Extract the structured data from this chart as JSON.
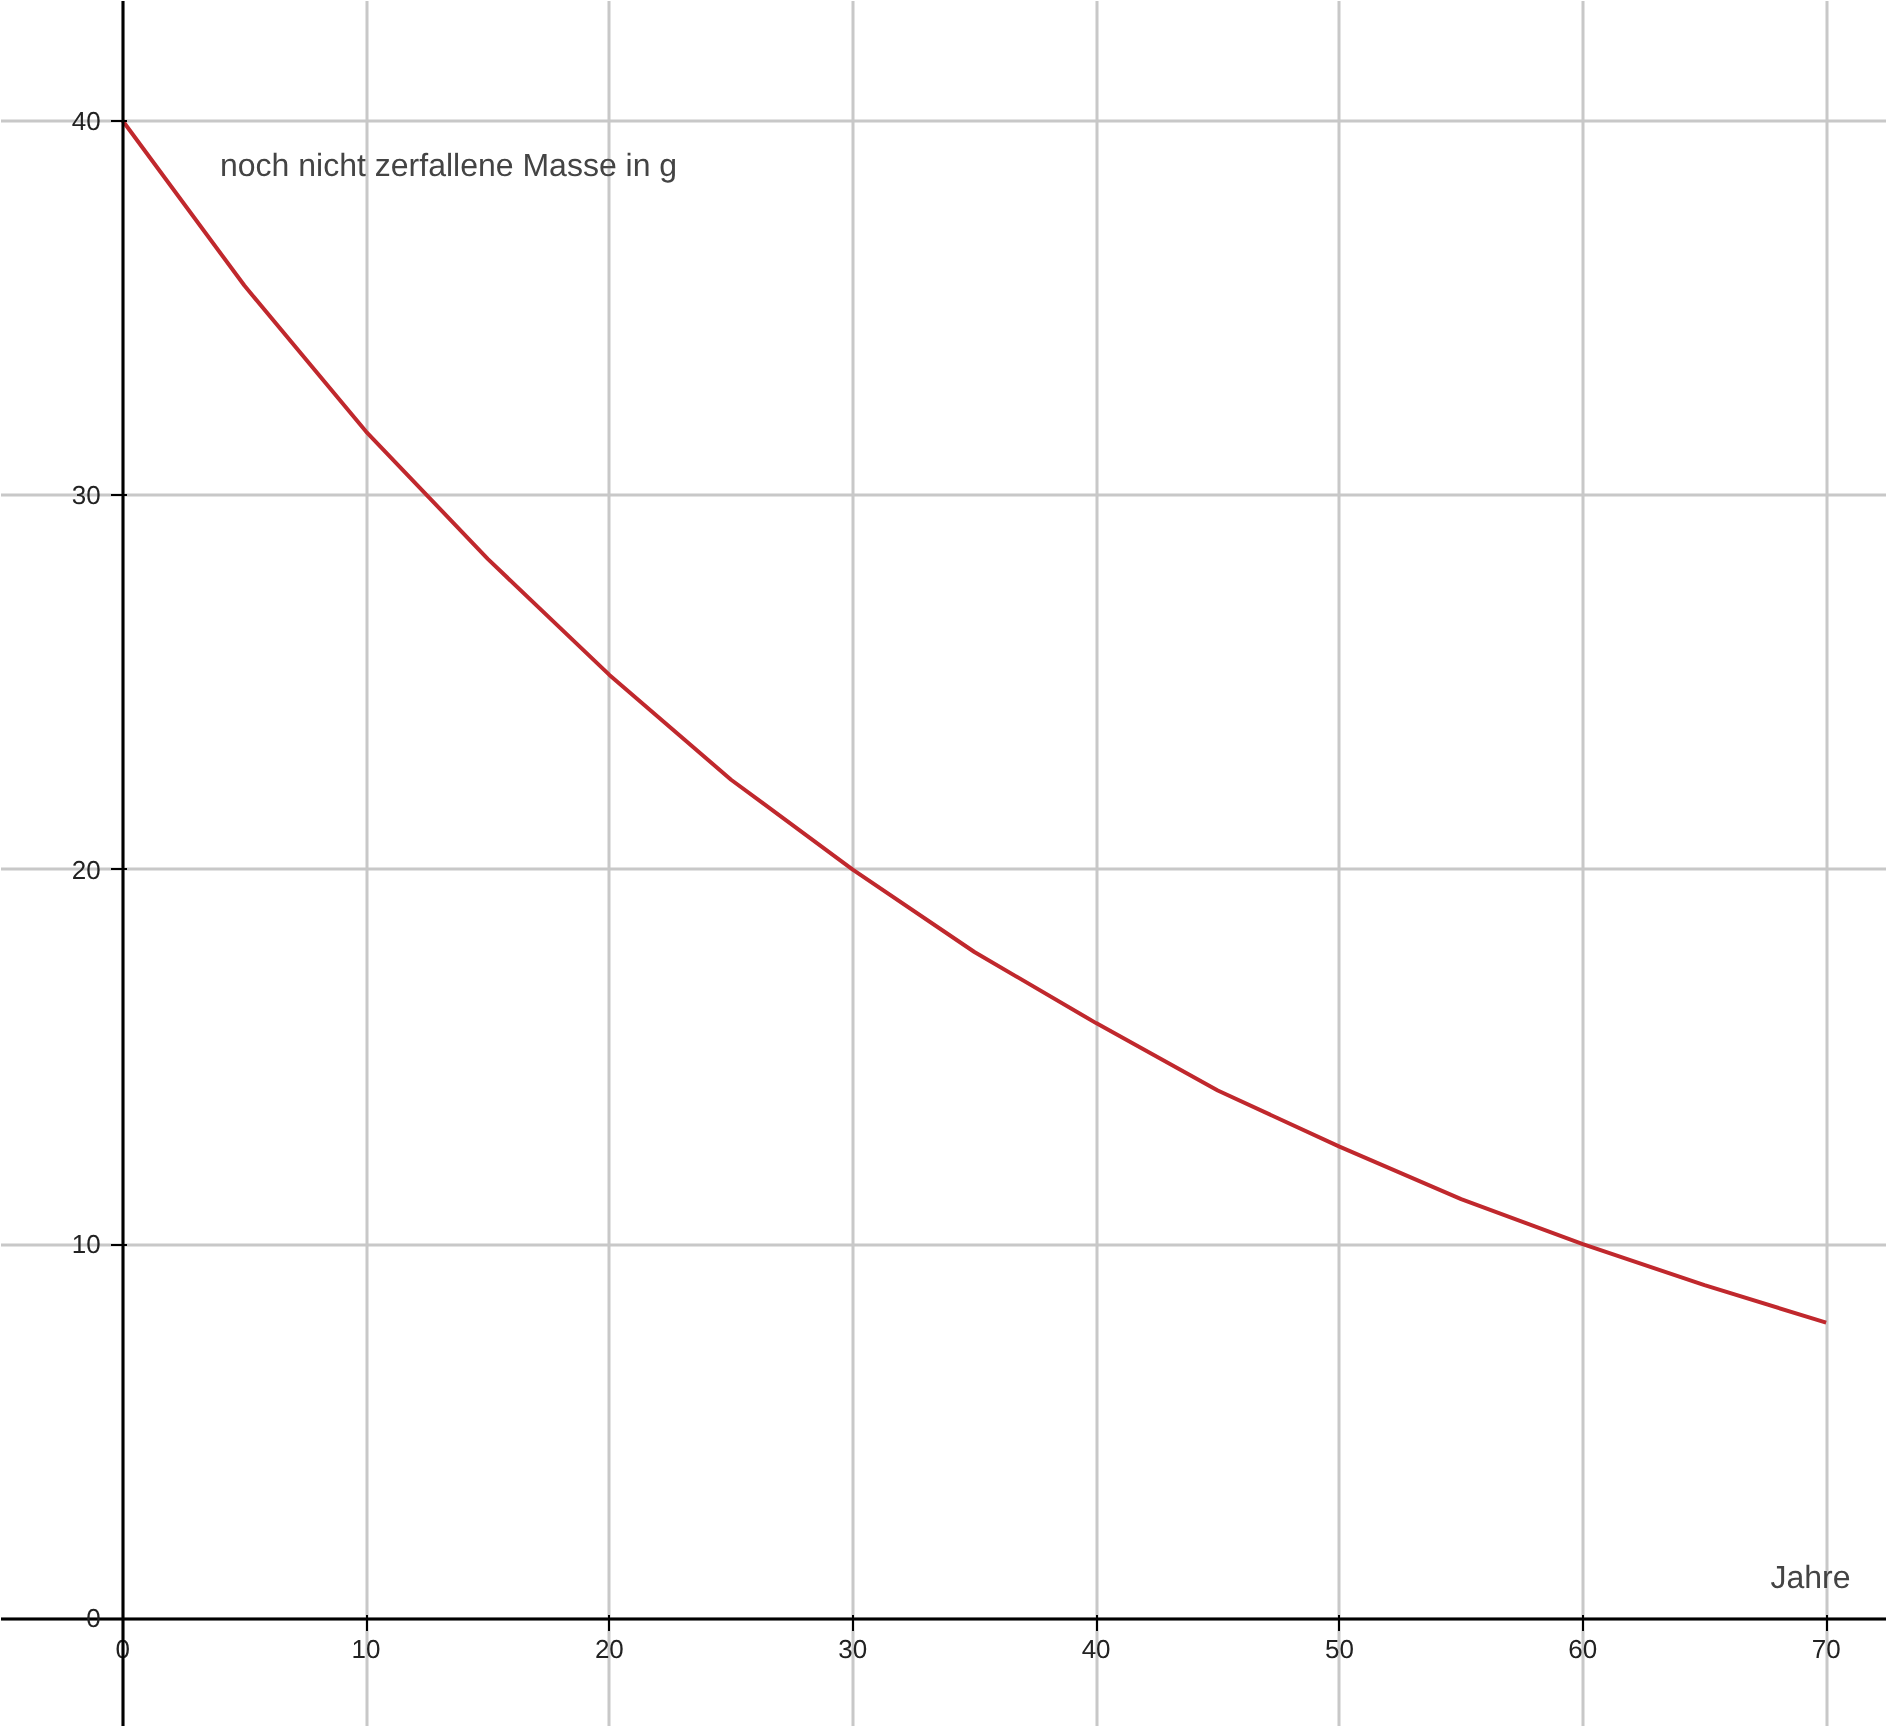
{
  "chart_data": {
    "type": "line",
    "xlabel": "Jahre",
    "ylabel": "noch nicht zerfallene Masse in g",
    "x": [
      0,
      5,
      10,
      15,
      20,
      25,
      30,
      35,
      40,
      45,
      50,
      55,
      60,
      65,
      70
    ],
    "series": [
      {
        "color": "#c0282d",
        "values": [
          40,
          35.6,
          31.7,
          28.3,
          25.2,
          22.4,
          20,
          17.8,
          15.9,
          14.1,
          12.6,
          11.2,
          10,
          8.9,
          7.9
        ]
      }
    ],
    "xlim": [
      -5,
      72.5
    ],
    "ylim": [
      -2.9,
      43.2
    ],
    "xticks": [
      0,
      10,
      20,
      30,
      40,
      50,
      60,
      70
    ],
    "yticks": [
      0,
      10,
      20,
      30,
      40
    ],
    "grid": true,
    "marker": "none",
    "line_style": "solid"
  }
}
